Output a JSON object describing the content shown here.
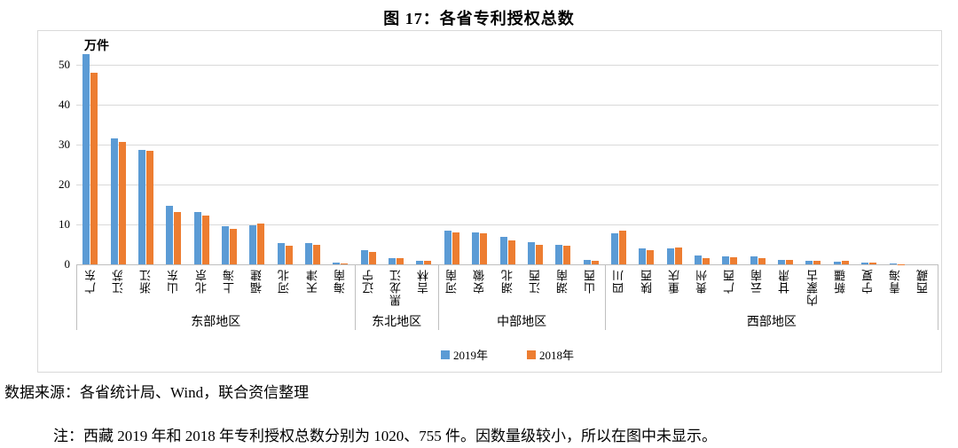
{
  "page": {
    "title": "图 17：各省专利授权总数",
    "source": "数据来源：各省统计局、Wind，联合资信整理",
    "note": "注：西藏 2019 年和 2018 年专利授权总数分别为 1020、755 件。因数量级较小，所以在图中未显示。"
  },
  "chart_data": {
    "type": "bar",
    "title": "图 17：各省专利授权总数",
    "unit_label": "万件",
    "ylabel": "万件",
    "ylim": [
      0,
      50
    ],
    "yticks": [
      0,
      10,
      20,
      30,
      40,
      50
    ],
    "grid": true,
    "legend": [
      "2019年",
      "2018年"
    ],
    "legend_position": "bottom-center",
    "colors": [
      "#5b9bd5",
      "#ed7d31"
    ],
    "gridline_color": "#d9d9d9",
    "axis_color": "#bfbfbf",
    "groups": [
      {
        "region": "东部地区",
        "categories": [
          "广东",
          "江苏",
          "浙江",
          "山东",
          "北京",
          "上海",
          "福建",
          "河北",
          "天津",
          "海南"
        ],
        "series": [
          {
            "name": "2019年",
            "values": [
              52.7,
              31.6,
              28.6,
              14.7,
              13.1,
              9.6,
              9.7,
              5.4,
              5.3,
              0.4
            ]
          },
          {
            "name": "2018年",
            "values": [
              48.0,
              30.7,
              28.5,
              13.2,
              12.3,
              8.9,
              10.2,
              4.7,
              5.0,
              0.3
            ]
          }
        ]
      },
      {
        "region": "东北地区",
        "categories": [
          "辽宁",
          "黑龙江",
          "吉林"
        ],
        "series": [
          {
            "name": "2019年",
            "values": [
              3.6,
              1.6,
              1.0
            ]
          },
          {
            "name": "2018年",
            "values": [
              3.1,
              1.5,
              0.85
            ]
          }
        ]
      },
      {
        "region": "中部地区",
        "categories": [
          "河南",
          "安徽",
          "湖北",
          "江西",
          "湖南",
          "山西"
        ],
        "series": [
          {
            "name": "2019年",
            "values": [
              8.4,
              7.9,
              7.0,
              5.6,
              5.0,
              1.2
            ]
          },
          {
            "name": "2018年",
            "values": [
              7.9,
              7.7,
              6.1,
              5.0,
              4.6,
              1.0
            ]
          }
        ]
      },
      {
        "region": "西部地区",
        "categories": [
          "四川",
          "陕西",
          "重庆",
          "贵州",
          "广西",
          "云南",
          "甘肃",
          "内蒙古",
          "新疆",
          "宁夏",
          "青海",
          "西藏"
        ],
        "series": [
          {
            "name": "2019年",
            "values": [
              7.8,
              3.9,
              4.0,
              2.3,
              2.0,
              2.0,
              1.2,
              0.9,
              0.7,
              0.35,
              0.15,
              0
            ]
          },
          {
            "name": "2018年",
            "values": [
              8.5,
              3.6,
              4.3,
              1.6,
              1.8,
              1.6,
              1.1,
              0.85,
              0.8,
              0.35,
              0.1,
              0
            ]
          }
        ]
      }
    ]
  }
}
